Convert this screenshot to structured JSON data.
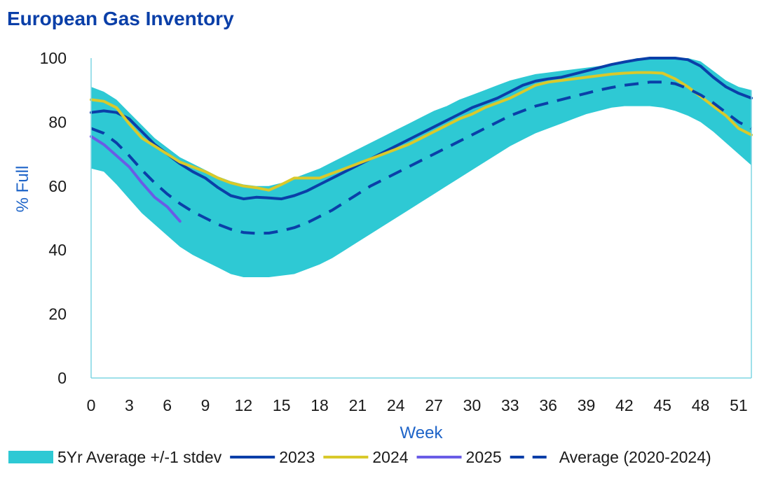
{
  "chart_data": {
    "type": "line",
    "title": "European Gas Inventory",
    "xlabel": "Week",
    "ylabel": "% Full",
    "xlim": [
      0,
      52
    ],
    "ylim": [
      0,
      100
    ],
    "x_ticks": [
      0,
      3,
      6,
      9,
      12,
      15,
      18,
      21,
      24,
      27,
      30,
      33,
      36,
      39,
      42,
      45,
      48,
      51
    ],
    "y_ticks": [
      0,
      20,
      40,
      60,
      80,
      100
    ],
    "grid": false,
    "legend_position": "bottom",
    "band": {
      "name": "5Yr Average +/-1 stdev",
      "color": "#2ec9d4",
      "x": [
        0,
        1,
        2,
        3,
        4,
        5,
        6,
        7,
        8,
        9,
        10,
        11,
        12,
        13,
        14,
        15,
        16,
        17,
        18,
        19,
        20,
        21,
        22,
        23,
        24,
        25,
        26,
        27,
        28,
        29,
        30,
        31,
        32,
        33,
        34,
        35,
        36,
        37,
        38,
        39,
        40,
        41,
        42,
        43,
        44,
        45,
        46,
        47,
        48,
        49,
        50,
        51,
        52
      ],
      "upper": [
        91,
        89.5,
        87,
        83,
        79,
        75,
        72,
        69,
        67,
        65,
        63,
        61.5,
        60.5,
        60,
        60,
        61,
        62.5,
        64,
        65.5,
        67.5,
        69.5,
        71.5,
        73.5,
        75.5,
        77.5,
        79.5,
        81.5,
        83.5,
        85,
        87,
        88.5,
        90,
        91.5,
        93,
        94,
        95,
        95.5,
        96,
        96.5,
        97,
        97.5,
        98,
        99,
        100,
        100,
        100,
        100,
        100,
        99,
        96,
        93,
        91,
        90
      ],
      "lower": [
        65.5,
        64.5,
        60.5,
        56,
        51.5,
        48,
        44.5,
        41,
        38.5,
        36.5,
        34.5,
        32.5,
        31.5,
        31.5,
        31.5,
        32,
        32.5,
        34,
        35.5,
        37.5,
        40,
        42.5,
        45,
        47.5,
        50,
        52.5,
        55,
        57.5,
        60,
        62.5,
        65,
        67.5,
        70,
        72.5,
        74.5,
        76.5,
        78,
        79.5,
        81,
        82.5,
        83.5,
        84.5,
        85,
        85,
        85,
        84.5,
        83.5,
        82,
        80,
        77,
        73.5,
        70,
        66.5
      ]
    },
    "series": [
      {
        "name": "2023",
        "color": "#0a3fa8",
        "dash": "solid",
        "x": [
          0,
          1,
          2,
          3,
          4,
          5,
          6,
          7,
          8,
          9,
          10,
          11,
          12,
          13,
          14,
          15,
          16,
          17,
          18,
          19,
          20,
          21,
          22,
          23,
          24,
          25,
          26,
          27,
          28,
          29,
          30,
          31,
          32,
          33,
          34,
          35,
          36,
          37,
          38,
          39,
          40,
          41,
          42,
          43,
          44,
          45,
          46,
          47,
          48,
          49,
          50,
          51,
          52
        ],
        "y": [
          83,
          83.5,
          83,
          81,
          77,
          73,
          70,
          67,
          64.5,
          62.5,
          59.5,
          57,
          56,
          56.5,
          56.3,
          56,
          57,
          58.5,
          60.5,
          62.5,
          64.5,
          66.5,
          68.5,
          70.5,
          72.5,
          74.5,
          76.5,
          78.5,
          80.5,
          82.5,
          84.5,
          86,
          87.5,
          89.5,
          91.5,
          92.8,
          93.5,
          94,
          95,
          96,
          97,
          98,
          98.8,
          99.5,
          100,
          100,
          100,
          99.5,
          97.5,
          94,
          91,
          89,
          87.5
        ]
      },
      {
        "name": "2024",
        "color": "#d9c92b",
        "dash": "solid",
        "x": [
          0,
          1,
          2,
          3,
          4,
          5,
          6,
          7,
          8,
          9,
          10,
          11,
          12,
          13,
          14,
          15,
          16,
          17,
          18,
          19,
          20,
          21,
          22,
          23,
          24,
          25,
          26,
          27,
          28,
          29,
          30,
          31,
          32,
          33,
          34,
          35,
          36,
          37,
          38,
          39,
          40,
          41,
          42,
          43,
          44,
          45,
          46,
          47,
          48,
          49,
          50,
          51,
          52
        ],
        "y": [
          87,
          86.5,
          84.5,
          79.5,
          75,
          72.5,
          70,
          67.5,
          66,
          64.5,
          62.5,
          61,
          60,
          59.5,
          58.7,
          60.5,
          62.5,
          62.5,
          62.5,
          64,
          65.5,
          67,
          68.5,
          70,
          71.5,
          73,
          75,
          77,
          79,
          81,
          82.5,
          84.5,
          86,
          87.5,
          89.5,
          91.5,
          92.5,
          93,
          93.5,
          94,
          94.5,
          95,
          95.3,
          95.5,
          95.5,
          95.3,
          93.5,
          91,
          88,
          85,
          82,
          78,
          76
        ]
      },
      {
        "name": "2025",
        "color": "#6a5ce6",
        "dash": "solid",
        "x": [
          0,
          1,
          2,
          3,
          4,
          5,
          6,
          7
        ],
        "y": [
          75.5,
          73,
          69.5,
          66,
          61,
          56.5,
          53.5,
          49
        ]
      },
      {
        "name": "Average (2020-2024)",
        "color": "#0a3fa8",
        "dash": "dashed",
        "x": [
          0,
          1,
          2,
          3,
          4,
          5,
          6,
          7,
          8,
          9,
          10,
          11,
          12,
          13,
          14,
          15,
          16,
          17,
          18,
          19,
          20,
          21,
          22,
          23,
          24,
          25,
          26,
          27,
          28,
          29,
          30,
          31,
          32,
          33,
          34,
          35,
          36,
          37,
          38,
          39,
          40,
          41,
          42,
          43,
          44,
          45,
          46,
          47,
          48,
          49,
          50,
          51,
          52
        ],
        "y": [
          78,
          76.5,
          73.5,
          69.5,
          65,
          61,
          57.5,
          54.5,
          52,
          50,
          48,
          46.5,
          45.5,
          45.2,
          45.3,
          46,
          47,
          48.5,
          50.5,
          52.5,
          55,
          57.5,
          60,
          62,
          64,
          66,
          68,
          70,
          72,
          74,
          76,
          78,
          80,
          82,
          83.5,
          85,
          86,
          87,
          88,
          89,
          90,
          90.8,
          91.5,
          92,
          92.5,
          92.5,
          92,
          90.5,
          88.5,
          86,
          83,
          80,
          78
        ]
      }
    ]
  }
}
